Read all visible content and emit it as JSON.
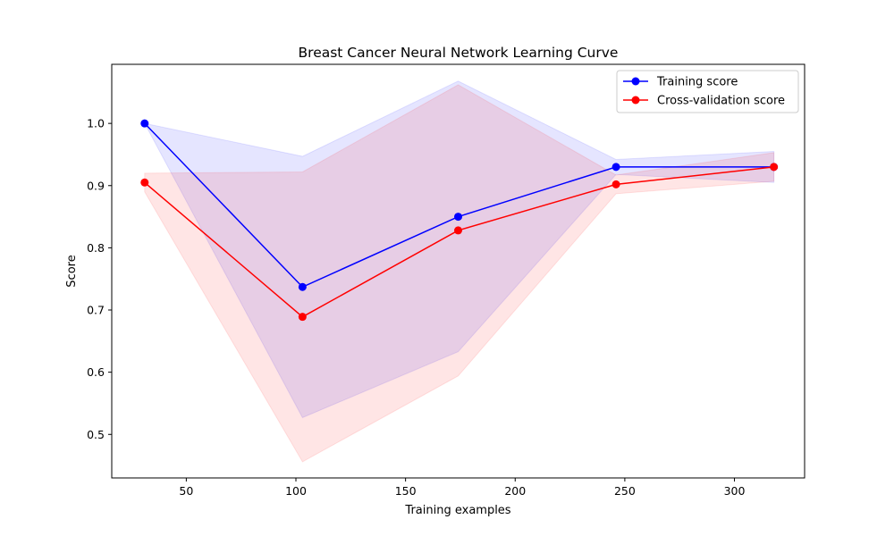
{
  "chart_data": {
    "type": "line",
    "title": "Breast Cancer Neural Network Learning Curve",
    "xlabel": "Training examples",
    "ylabel": "Score",
    "xlim": [
      16,
      332
    ],
    "ylim": [
      0.43,
      1.095
    ],
    "xticks": [
      50,
      100,
      150,
      200,
      250,
      300
    ],
    "yticks": [
      0.5,
      0.6,
      0.7,
      0.8,
      0.9,
      1.0
    ],
    "ytick_labels": [
      "0.5",
      "0.6",
      "0.7",
      "0.8",
      "0.9",
      "1.0"
    ],
    "grid": false,
    "legend_position": "top-right",
    "x": [
      31,
      103,
      174,
      246,
      318
    ],
    "series": [
      {
        "name": "Training score",
        "color": "#0000ff",
        "values": [
          1.0,
          0.737,
          0.85,
          0.93,
          0.93
        ],
        "band_lower": [
          1.0,
          0.527,
          0.633,
          0.918,
          0.905
        ],
        "band_upper": [
          1.0,
          0.947,
          1.068,
          0.942,
          0.955
        ]
      },
      {
        "name": "Cross-validation score",
        "color": "#ff0000",
        "values": [
          0.905,
          0.689,
          0.828,
          0.902,
          0.93
        ],
        "band_lower": [
          0.89,
          0.456,
          0.594,
          0.887,
          0.907
        ],
        "band_upper": [
          0.92,
          0.922,
          1.062,
          0.917,
          0.953
        ]
      }
    ]
  }
}
